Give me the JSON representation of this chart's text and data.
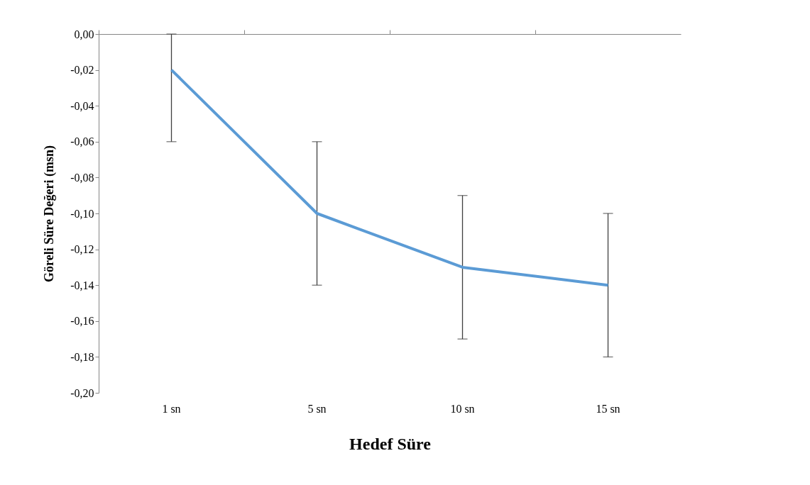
{
  "chart_data": {
    "type": "line",
    "xlabel": "Hedef Süre",
    "ylabel": "Göreli Süre Değeri (msn)",
    "categories": [
      "1 sn",
      "5 sn",
      "10 sn",
      "15 sn"
    ],
    "series": [
      {
        "color": "#5b9bd5",
        "values": [
          -0.02,
          -0.1,
          -0.13,
          -0.14
        ],
        "errors": [
          [
            -0.06,
            0.0
          ],
          0.04,
          0.04,
          0.04
        ]
      }
    ],
    "ylim": [
      -0.2,
      0.0
    ],
    "yticks": [
      {
        "value": 0.0,
        "label": "0,00"
      },
      {
        "value": -0.02,
        "label": "-0,02"
      },
      {
        "value": -0.04,
        "label": "-0,04"
      },
      {
        "value": -0.06,
        "label": "-0,06"
      },
      {
        "value": -0.08,
        "label": "-0,08"
      },
      {
        "value": -0.1,
        "label": "-0,10"
      },
      {
        "value": -0.12,
        "label": "-0,12"
      },
      {
        "value": -0.14,
        "label": "-0,14"
      },
      {
        "value": -0.16,
        "label": "-0,16"
      },
      {
        "value": -0.18,
        "label": "-0,18"
      },
      {
        "value": -0.2,
        "label": "-0,20"
      }
    ],
    "grid": false,
    "marker": "none",
    "line_style": "solid"
  }
}
